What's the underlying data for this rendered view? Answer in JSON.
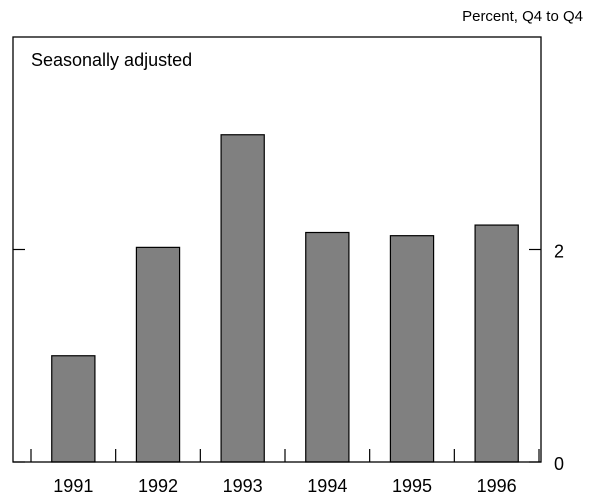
{
  "chart_data": {
    "type": "bar",
    "subtitle": "Percent, Q4 to Q4",
    "annotation": "Seasonally adjusted",
    "categories": [
      "1991",
      "1992",
      "1993",
      "1994",
      "1995",
      "1996"
    ],
    "values": [
      1.0,
      2.02,
      3.08,
      2.16,
      2.13,
      2.23
    ],
    "color": "#808080",
    "ylim": [
      0,
      4
    ],
    "yticks": [
      0,
      2
    ]
  }
}
